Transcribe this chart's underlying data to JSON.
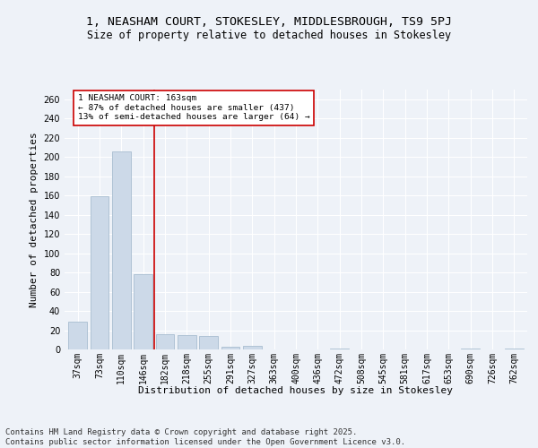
{
  "title1": "1, NEASHAM COURT, STOKESLEY, MIDDLESBROUGH, TS9 5PJ",
  "title2": "Size of property relative to detached houses in Stokesley",
  "xlabel": "Distribution of detached houses by size in Stokesley",
  "ylabel": "Number of detached properties",
  "categories": [
    "37sqm",
    "73sqm",
    "110sqm",
    "146sqm",
    "182sqm",
    "218sqm",
    "255sqm",
    "291sqm",
    "327sqm",
    "363sqm",
    "400sqm",
    "436sqm",
    "472sqm",
    "508sqm",
    "545sqm",
    "581sqm",
    "617sqm",
    "653sqm",
    "690sqm",
    "726sqm",
    "762sqm"
  ],
  "values": [
    29,
    159,
    206,
    78,
    16,
    15,
    14,
    3,
    4,
    0,
    0,
    0,
    1,
    0,
    0,
    0,
    0,
    0,
    1,
    0,
    1
  ],
  "bar_color": "#ccd9e8",
  "bar_edge_color": "#a8bdd0",
  "vline_x": 3.5,
  "vline_color": "#cc0000",
  "annotation_text": "1 NEASHAM COURT: 163sqm\n← 87% of detached houses are smaller (437)\n13% of semi-detached houses are larger (64) →",
  "annotation_box_color": "#ffffff",
  "annotation_box_edge": "#cc0000",
  "ylim": [
    0,
    270
  ],
  "yticks": [
    0,
    20,
    40,
    60,
    80,
    100,
    120,
    140,
    160,
    180,
    200,
    220,
    240,
    260
  ],
  "bg_color": "#eef2f8",
  "grid_color": "#ffffff",
  "footer": "Contains HM Land Registry data © Crown copyright and database right 2025.\nContains public sector information licensed under the Open Government Licence v3.0.",
  "title_fontsize": 9.5,
  "subtitle_fontsize": 8.5,
  "axis_label_fontsize": 8,
  "tick_fontsize": 7,
  "footer_fontsize": 6.5
}
